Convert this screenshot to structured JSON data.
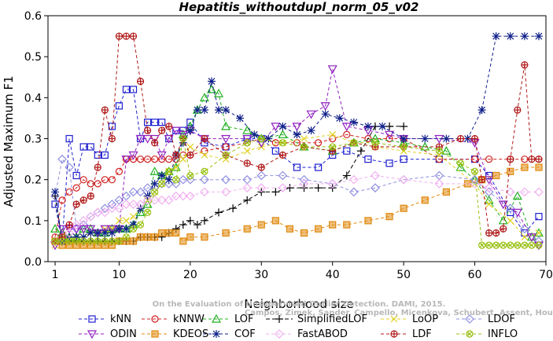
{
  "chart_data": {
    "type": "line",
    "title": "Hepatitis_withoutdupl_norm_05_v02",
    "xlabel": "Neighborhood size",
    "ylabel": "Adjusted Maximum F1",
    "xlim": [
      0,
      70
    ],
    "ylim": [
      0,
      0.6
    ],
    "xticks": [
      1,
      10,
      20,
      30,
      40,
      50,
      60,
      70
    ],
    "yticks": [
      0.0,
      0.1,
      0.2,
      0.3,
      0.4,
      0.5,
      0.6
    ],
    "ytick_labels": [
      "0.0",
      "0.1",
      "0.2",
      "0.3",
      "0.4",
      "0.5",
      "0.6"
    ],
    "grid": false,
    "legend_position": "bottom",
    "watermark": [
      "Campos, Zimek, Sander, Campello, Micenkova, Schubert, Assent, Houle",
      "On the Evaluation of Unsupervised Outlier Detection. DAMI, 2015."
    ],
    "series": [
      {
        "name": "kNN",
        "color": "#1f1fd0",
        "marker": "square",
        "dash": "4,3",
        "x": [
          1,
          2,
          3,
          4,
          5,
          6,
          7,
          8,
          9,
          10,
          11,
          12,
          13,
          14,
          15,
          16,
          17,
          18,
          19,
          20,
          22,
          25,
          28,
          30,
          32,
          35,
          38,
          40,
          42,
          45,
          48,
          50,
          55,
          60,
          62,
          65,
          67,
          69
        ],
        "y": [
          0.14,
          0.05,
          0.3,
          0.21,
          0.28,
          0.28,
          0.26,
          0.26,
          0.33,
          0.38,
          0.42,
          0.42,
          0.3,
          0.34,
          0.34,
          0.34,
          0.3,
          0.32,
          0.32,
          0.34,
          0.29,
          0.28,
          0.3,
          0.3,
          0.27,
          0.23,
          0.23,
          0.26,
          0.27,
          0.25,
          0.24,
          0.25,
          0.25,
          0.25,
          0.21,
          0.12,
          0.07,
          0.11
        ]
      },
      {
        "name": "kNNW",
        "color": "#d02020",
        "marker": "circle",
        "dash": "4,3",
        "x": [
          1,
          2,
          3,
          4,
          5,
          6,
          7,
          8,
          9,
          10,
          11,
          12,
          13,
          14,
          15,
          16,
          17,
          18,
          19,
          20,
          22,
          25,
          28,
          30,
          32,
          35,
          38,
          40,
          42,
          45,
          48,
          50,
          55,
          60,
          62,
          65,
          67,
          69
        ],
        "y": [
          0.06,
          0.15,
          0.17,
          0.18,
          0.2,
          0.19,
          0.19,
          0.2,
          0.2,
          0.22,
          0.25,
          0.25,
          0.25,
          0.25,
          0.25,
          0.25,
          0.25,
          0.25,
          0.26,
          0.26,
          0.27,
          0.28,
          0.29,
          0.3,
          0.29,
          0.29,
          0.29,
          0.3,
          0.31,
          0.3,
          0.3,
          0.3,
          0.25,
          0.25,
          0.25,
          0.25,
          0.25,
          0.25
        ]
      },
      {
        "name": "LOF",
        "color": "#20b020",
        "marker": "triangle-up",
        "dash": "4,3",
        "x": [
          1,
          2,
          3,
          4,
          5,
          6,
          7,
          8,
          9,
          10,
          11,
          12,
          13,
          14,
          15,
          16,
          17,
          18,
          19,
          20,
          21,
          22,
          23,
          24,
          25,
          28,
          30,
          33,
          36,
          40,
          43,
          46,
          50,
          53,
          56,
          58,
          60,
          62,
          64,
          66,
          68,
          69
        ],
        "y": [
          0.08,
          0.07,
          0.06,
          0.06,
          0.08,
          0.08,
          0.07,
          0.07,
          0.08,
          0.08,
          0.08,
          0.09,
          0.12,
          0.14,
          0.22,
          0.21,
          0.22,
          0.23,
          0.31,
          0.33,
          0.37,
          0.4,
          0.42,
          0.41,
          0.33,
          0.32,
          0.3,
          0.31,
          0.28,
          0.27,
          0.29,
          0.3,
          0.29,
          0.28,
          0.27,
          0.23,
          0.2,
          0.15,
          0.1,
          0.16,
          0.06,
          0.07
        ]
      },
      {
        "name": "SimplifiedLOF",
        "color": "#000000",
        "marker": "plus",
        "dash": "5,3",
        "x": [
          1,
          2,
          3,
          4,
          5,
          6,
          7,
          8,
          9,
          10,
          11,
          12,
          13,
          14,
          15,
          16,
          17,
          18,
          19,
          20,
          21,
          22,
          24,
          26,
          28,
          30,
          32,
          34,
          36,
          38,
          40,
          42,
          44,
          46,
          48,
          50
        ],
        "y": [
          0.16,
          0.05,
          0.05,
          0.05,
          0.05,
          0.05,
          0.05,
          0.05,
          0.05,
          0.05,
          0.05,
          0.05,
          0.06,
          0.06,
          0.06,
          0.06,
          0.07,
          0.08,
          0.09,
          0.1,
          0.09,
          0.1,
          0.12,
          0.13,
          0.15,
          0.17,
          0.17,
          0.18,
          0.18,
          0.18,
          0.18,
          0.21,
          0.27,
          0.33,
          0.33,
          0.33
        ]
      },
      {
        "name": "LoOP",
        "color": "#e0d020",
        "marker": "x",
        "dash": "4,3",
        "x": [
          1,
          2,
          3,
          4,
          5,
          6,
          7,
          8,
          9,
          10,
          11,
          12,
          13,
          14,
          15,
          16,
          17,
          18,
          19,
          20,
          22,
          25,
          28,
          30,
          33,
          36,
          40,
          43,
          46,
          50,
          55,
          60,
          62,
          65,
          67,
          69
        ],
        "y": [
          0.04,
          0.06,
          0.05,
          0.06,
          0.06,
          0.07,
          0.07,
          0.08,
          0.08,
          0.1,
          0.1,
          0.11,
          0.13,
          0.15,
          0.17,
          0.19,
          0.22,
          0.23,
          0.25,
          0.28,
          0.26,
          0.25,
          0.27,
          0.28,
          0.29,
          0.3,
          0.31,
          0.29,
          0.28,
          0.27,
          0.26,
          0.19,
          0.14,
          0.1,
          0.06,
          0.07
        ]
      },
      {
        "name": "LDOF",
        "color": "#9090e0",
        "marker": "diamond",
        "dash": "4,3",
        "x": [
          1,
          2,
          3,
          4,
          5,
          6,
          7,
          8,
          9,
          10,
          11,
          12,
          13,
          14,
          15,
          16,
          17,
          18,
          19,
          20,
          22,
          25,
          28,
          30,
          33,
          36,
          40,
          43,
          46,
          50,
          55,
          60,
          62,
          65,
          67,
          69
        ],
        "y": [
          0.16,
          0.25,
          0.23,
          0.08,
          0.09,
          0.11,
          0.12,
          0.13,
          0.14,
          0.15,
          0.16,
          0.17,
          0.17,
          0.18,
          0.18,
          0.19,
          0.19,
          0.19,
          0.2,
          0.2,
          0.2,
          0.2,
          0.2,
          0.21,
          0.21,
          0.2,
          0.19,
          0.17,
          0.18,
          0.2,
          0.21,
          0.2,
          0.17,
          0.13,
          0.08,
          0.05
        ]
      },
      {
        "name": "ODIN",
        "color": "#9020c0",
        "marker": "triangle-down",
        "dash": "4,3",
        "x": [
          1,
          2,
          3,
          4,
          5,
          6,
          7,
          8,
          9,
          10,
          11,
          12,
          13,
          14,
          15,
          16,
          17,
          18,
          19,
          20,
          22,
          25,
          28,
          30,
          32,
          35,
          37,
          39,
          40,
          42,
          45,
          48,
          50,
          55,
          60,
          62,
          64,
          66,
          68,
          69
        ],
        "y": [
          0.04,
          0.08,
          0.08,
          0.08,
          0.08,
          0.08,
          0.07,
          0.08,
          0.08,
          0.08,
          0.25,
          0.26,
          0.3,
          0.3,
          0.3,
          0.26,
          0.3,
          0.32,
          0.31,
          0.32,
          0.3,
          0.3,
          0.3,
          0.29,
          0.33,
          0.33,
          0.36,
          0.38,
          0.47,
          0.33,
          0.32,
          0.31,
          0.3,
          0.3,
          0.29,
          0.2,
          0.14,
          0.12,
          0.06,
          0.04
        ]
      },
      {
        "name": "KDEOS",
        "color": "#e08a10",
        "marker": "square-filled",
        "dash": "4,3",
        "x": [
          1,
          2,
          3,
          4,
          5,
          6,
          7,
          8,
          9,
          10,
          11,
          12,
          13,
          14,
          15,
          16,
          17,
          18,
          19,
          20,
          22,
          25,
          28,
          30,
          32,
          34,
          36,
          38,
          40,
          42,
          45,
          48,
          50,
          53,
          56,
          59,
          61,
          63,
          65,
          67,
          69
        ],
        "y": [
          0.05,
          0.04,
          0.04,
          0.04,
          0.04,
          0.04,
          0.04,
          0.04,
          0.04,
          0.05,
          0.05,
          0.05,
          0.06,
          0.06,
          0.06,
          0.07,
          0.07,
          0.07,
          0.05,
          0.06,
          0.06,
          0.07,
          0.08,
          0.09,
          0.1,
          0.08,
          0.07,
          0.08,
          0.09,
          0.09,
          0.1,
          0.11,
          0.13,
          0.15,
          0.17,
          0.19,
          0.2,
          0.21,
          0.22,
          0.23,
          0.23
        ]
      },
      {
        "name": "COF",
        "color": "#10208a",
        "marker": "asterisk",
        "dash": "4,3",
        "x": [
          1,
          2,
          3,
          4,
          5,
          6,
          7,
          8,
          9,
          10,
          11,
          12,
          13,
          14,
          15,
          16,
          17,
          18,
          19,
          20,
          21,
          22,
          23,
          24,
          25,
          27,
          29,
          31,
          33,
          35,
          37,
          39,
          41,
          43,
          45,
          47,
          50,
          53,
          56,
          59,
          61,
          63,
          65,
          67,
          69
        ],
        "y": [
          0.17,
          0.05,
          0.06,
          0.06,
          0.06,
          0.07,
          0.07,
          0.07,
          0.07,
          0.08,
          0.08,
          0.09,
          0.13,
          0.16,
          0.19,
          0.21,
          0.2,
          0.26,
          0.29,
          0.32,
          0.37,
          0.37,
          0.44,
          0.37,
          0.37,
          0.35,
          0.31,
          0.3,
          0.33,
          0.31,
          0.32,
          0.36,
          0.35,
          0.34,
          0.33,
          0.33,
          0.3,
          0.3,
          0.3,
          0.3,
          0.37,
          0.55,
          0.55,
          0.55,
          0.55
        ]
      },
      {
        "name": "FastABOD",
        "color": "#f0b0f0",
        "marker": "diamond",
        "dash": "4,3",
        "x": [
          1,
          2,
          3,
          4,
          5,
          6,
          7,
          8,
          9,
          10,
          11,
          12,
          13,
          14,
          15,
          16,
          17,
          18,
          19,
          20,
          22,
          25,
          28,
          30,
          33,
          36,
          40,
          43,
          46,
          50,
          55,
          60,
          62,
          65,
          67,
          69
        ],
        "y": [
          0.05,
          0.06,
          0.07,
          0.09,
          0.1,
          0.11,
          0.12,
          0.12,
          0.13,
          0.13,
          0.14,
          0.14,
          0.14,
          0.15,
          0.15,
          0.15,
          0.15,
          0.16,
          0.16,
          0.16,
          0.17,
          0.17,
          0.18,
          0.18,
          0.18,
          0.19,
          0.19,
          0.2,
          0.21,
          0.2,
          0.19,
          0.19,
          0.18,
          0.17,
          0.17,
          0.17
        ]
      },
      {
        "name": "LDF",
        "color": "#b01818",
        "marker": "circle-plus",
        "dash": "4,3",
        "x": [
          1,
          2,
          3,
          4,
          5,
          6,
          7,
          8,
          9,
          10,
          11,
          12,
          13,
          14,
          15,
          16,
          17,
          18,
          19,
          20,
          22,
          25,
          28,
          30,
          33,
          36,
          40,
          43,
          46,
          50,
          55,
          58,
          60,
          61,
          62,
          63,
          64,
          65,
          66,
          67,
          68,
          69
        ],
        "y": [
          0.05,
          0.06,
          0.09,
          0.14,
          0.15,
          0.16,
          0.23,
          0.37,
          0.3,
          0.55,
          0.55,
          0.55,
          0.44,
          0.32,
          0.29,
          0.32,
          0.33,
          0.26,
          0.3,
          0.26,
          0.3,
          0.26,
          0.24,
          0.23,
          0.26,
          0.28,
          0.27,
          0.29,
          0.28,
          0.28,
          0.28,
          0.3,
          0.3,
          0.2,
          0.07,
          0.07,
          0.08,
          0.25,
          0.37,
          0.48,
          0.25,
          0.25
        ]
      },
      {
        "name": "INFLO",
        "color": "#98c010",
        "marker": "x-circle",
        "dash": "4,3",
        "x": [
          1,
          2,
          3,
          4,
          5,
          6,
          7,
          8,
          9,
          10,
          11,
          12,
          13,
          14,
          15,
          16,
          17,
          18,
          19,
          20,
          22,
          25,
          28,
          30,
          33,
          36,
          40,
          43,
          46,
          50,
          55,
          58,
          60,
          61,
          62,
          63,
          64,
          65,
          66,
          67,
          68,
          69
        ],
        "y": [
          0.05,
          0.05,
          0.05,
          0.05,
          0.05,
          0.05,
          0.05,
          0.05,
          0.05,
          0.05,
          0.06,
          0.08,
          0.09,
          0.12,
          0.17,
          0.19,
          0.22,
          0.2,
          0.3,
          0.21,
          0.22,
          0.26,
          0.29,
          0.3,
          0.29,
          0.28,
          0.28,
          0.29,
          0.29,
          0.28,
          0.27,
          0.24,
          0.22,
          0.04,
          0.04,
          0.04,
          0.04,
          0.04,
          0.04,
          0.04,
          0.04,
          0.04
        ]
      }
    ]
  }
}
